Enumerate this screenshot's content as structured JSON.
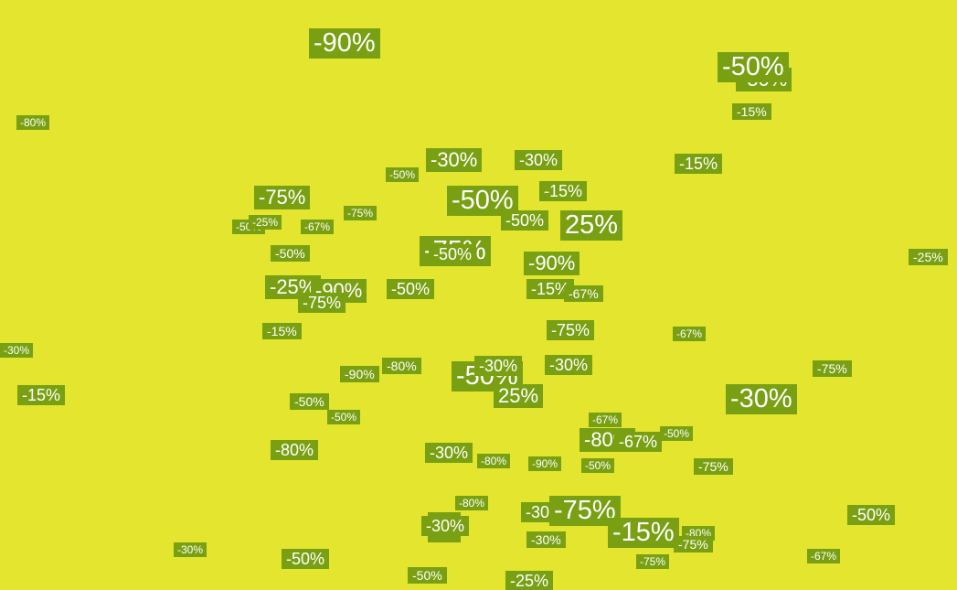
{
  "colors": {
    "background": "#e4e52e",
    "tag_fill": "#79a012",
    "tag_text": "#ffffff"
  },
  "tags": [
    "-90%",
    "-50%",
    "-50%",
    "-15%",
    "-80%",
    "-30%",
    "-30%",
    "-15%",
    "-50%",
    "-75%",
    "-50%",
    "-15%",
    "-50%",
    "-25%",
    "-75%",
    "-67%",
    "-50%",
    "25%",
    "-25%",
    "-50%",
    "-75%",
    "-50%",
    "-90%",
    "-25%",
    "-90%",
    "-75%",
    "-50%",
    "-15%",
    "-67%",
    "-75%",
    "-15%",
    "-30%",
    "-67%",
    "-90%",
    "-80%",
    "-50%",
    "-30%",
    "-30%",
    "-75%",
    "-15%",
    "-50%",
    "-30%",
    "-50%",
    "25%",
    "-67%",
    "-50%",
    "-80%",
    "-67%",
    "-80%",
    "-30%",
    "-80%",
    "-90%",
    "-50%",
    "-75%",
    "-80%",
    "%",
    "-30%",
    "-30%",
    "-30%",
    "-75%",
    "-15%",
    "-80%",
    "-75%",
    "-50%",
    "-67%",
    "-75%",
    "-30%",
    "-50%",
    "-50%",
    "-25%"
  ]
}
